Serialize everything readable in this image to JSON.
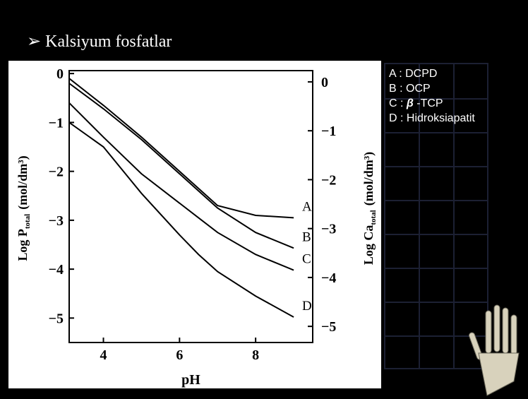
{
  "slide": {
    "title": "➢ Kalsiyum fosfatlar",
    "notes": [
      {
        "prefix": "A : ",
        "name": "DCPD"
      },
      {
        "prefix": "B : ",
        "name": "OCP"
      },
      {
        "prefix": "C : ",
        "symbol": "β",
        "name": " -TCP"
      },
      {
        "prefix": "D : ",
        "name": "Hidroksiapatit"
      }
    ]
  },
  "chart_data": {
    "type": "line",
    "xlabel": "pH",
    "ylabel": {
      "main": "Log P",
      "sub": "total",
      "unit": "(mol/dm³)"
    },
    "y2label": {
      "main": "Log Ca",
      "sub": "total",
      "unit": "(mol/dm³)"
    },
    "x": [
      3.1,
      4,
      5,
      6,
      6.5,
      7,
      8,
      9
    ],
    "xlim": [
      3.1,
      9.5
    ],
    "xticks": [
      4,
      6,
      8
    ],
    "ylim": [
      -5.5,
      0.06
    ],
    "yticks": [
      0,
      {
        "value": -1,
        "label": "−1"
      },
      {
        "value": -2,
        "label": "−2"
      },
      {
        "value": -3,
        "label": "−3"
      },
      {
        "value": -4,
        "label": "−4"
      },
      {
        "value": -5,
        "label": "−5"
      }
    ],
    "y2lim": [
      -5.33,
      0.23
    ],
    "y2ticks": [
      0,
      {
        "value": -1,
        "label": "−1"
      },
      {
        "value": -2,
        "label": "−2"
      },
      {
        "value": -3,
        "label": "−3"
      },
      {
        "value": -4,
        "label": "−4"
      },
      {
        "value": -5,
        "label": "−5"
      }
    ],
    "series": [
      {
        "name": "A",
        "color": "#000000",
        "values": [
          -0.1,
          -0.65,
          -1.3,
          -2.0,
          -2.35,
          -2.7,
          -2.9,
          -2.95
        ]
      },
      {
        "name": "B",
        "color": "#000000",
        "values": [
          -0.2,
          -0.72,
          -1.35,
          -2.05,
          -2.4,
          -2.75,
          -3.25,
          -3.57
        ]
      },
      {
        "name": "C",
        "color": "#000000",
        "values": [
          -0.6,
          -1.3,
          -2.05,
          -2.65,
          -2.95,
          -3.25,
          -3.7,
          -4.02
        ]
      },
      {
        "name": "D",
        "color": "#000000",
        "values": [
          -1.0,
          -1.5,
          -2.45,
          -3.3,
          -3.7,
          -4.05,
          -4.55,
          -4.98
        ]
      }
    ]
  }
}
